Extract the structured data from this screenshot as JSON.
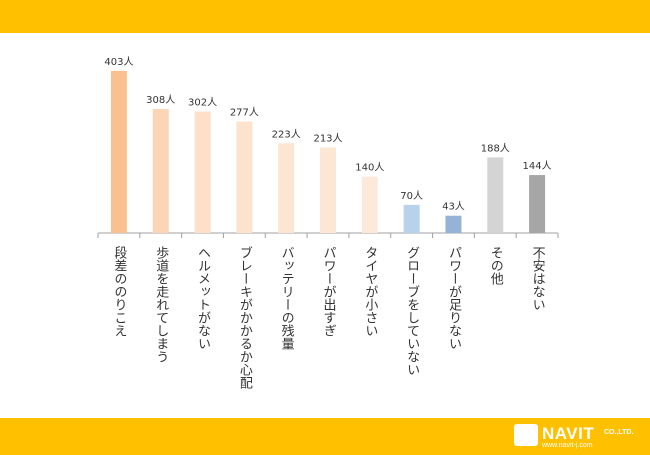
{
  "header_color": "#FFC000",
  "footer_color": "#FFC000",
  "brand": {
    "name": "NAVIT",
    "suffix": "CO.,LTD.",
    "url": "www.navit-j.com"
  },
  "chart_data": {
    "type": "bar",
    "unit": "人",
    "categories": [
      "段差ののりこえ",
      "歩道を走れてしまう",
      "ヘルメットがない",
      "ブレーキがかかるか心配",
      "バッテリーの残量",
      "パワーが出すぎ",
      "タイヤが小さい",
      "グローブをしていない",
      "パワーが足りない",
      "その他",
      "不安はない"
    ],
    "values": [
      403,
      308,
      302,
      277,
      223,
      213,
      140,
      70,
      43,
      188,
      144
    ],
    "value_labels": [
      "403人",
      "308人",
      "302人",
      "277人",
      "223人",
      "213人",
      "140人",
      "70人",
      "43人",
      "188人",
      "144人"
    ],
    "colors": [
      "#FAC090",
      "#FBD5B5",
      "#FCE0C8",
      "#FCE3CE",
      "#FCE5D2",
      "#FCE7D5",
      "#FDE9D9",
      "#B8D2EC",
      "#95B3D7",
      "#D4D4D4",
      "#A6A6A6"
    ],
    "ylim": [
      0,
      430
    ],
    "grid": false,
    "legend": "none",
    "orientation": "vertical",
    "label_orientation": "vertical"
  }
}
